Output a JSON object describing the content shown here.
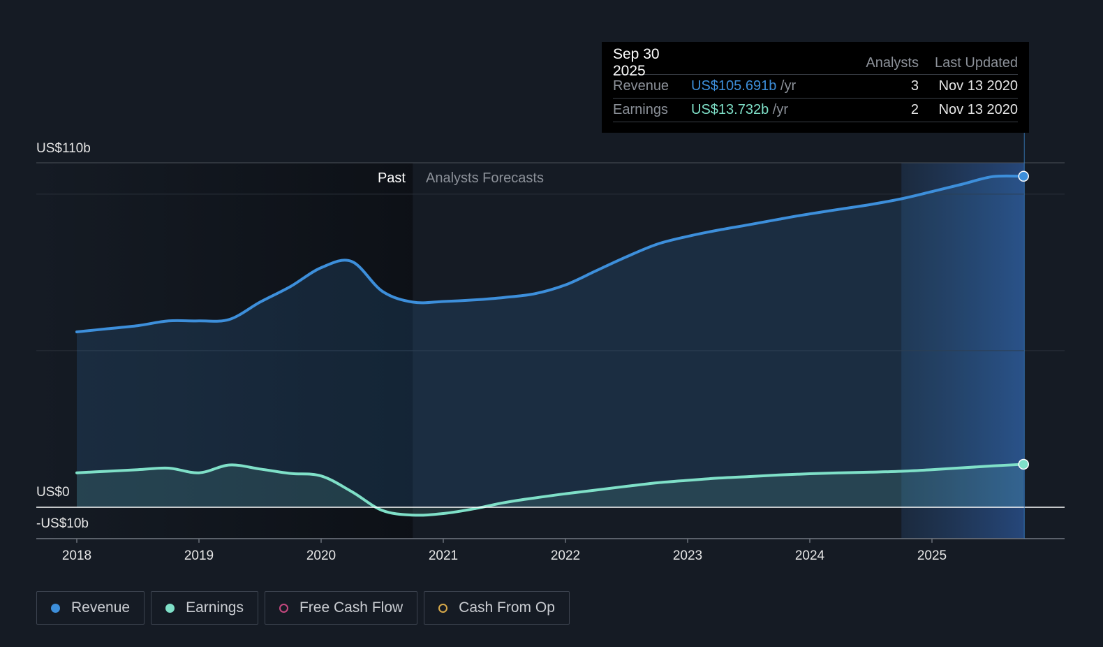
{
  "chart_data": {
    "type": "area",
    "x_ticks": [
      "2018",
      "2019",
      "2020",
      "2021",
      "2022",
      "2023",
      "2024",
      "2025"
    ],
    "y_labels": [
      "US$110b",
      "US$0",
      "-US$10b"
    ],
    "ylim": [
      -10,
      110
    ],
    "region_labels": {
      "past": "Past",
      "forecast": "Analysts Forecasts"
    },
    "past_end": 2020.75,
    "highlight_start": 2024.75,
    "series": [
      {
        "name": "Revenue",
        "color": "#3d8fdb",
        "x": [
          2018.0,
          2018.25,
          2018.5,
          2018.75,
          2019.0,
          2019.25,
          2019.5,
          2019.75,
          2020.0,
          2020.25,
          2020.5,
          2020.75,
          2021.0,
          2021.25,
          2021.5,
          2021.75,
          2022.0,
          2022.25,
          2022.5,
          2022.75,
          2023.0,
          2023.25,
          2023.5,
          2023.75,
          2024.0,
          2024.25,
          2024.5,
          2024.75,
          2025.0,
          2025.25,
          2025.5,
          2025.75
        ],
        "values": [
          56.0,
          57.0,
          58.0,
          59.5,
          59.5,
          60.0,
          65.5,
          70.5,
          76.5,
          78.5,
          69.0,
          65.5,
          65.7,
          66.2,
          67.0,
          68.2,
          71.0,
          75.5,
          80.0,
          84.0,
          86.5,
          88.5,
          90.2,
          92.0,
          93.7,
          95.2,
          96.7,
          98.5,
          100.8,
          103.2,
          105.6,
          105.691
        ]
      },
      {
        "name": "Earnings",
        "color": "#7fe0c8",
        "x": [
          2018.0,
          2018.25,
          2018.5,
          2018.75,
          2019.0,
          2019.25,
          2019.5,
          2019.75,
          2020.0,
          2020.25,
          2020.5,
          2020.75,
          2021.0,
          2021.25,
          2021.5,
          2021.75,
          2022.0,
          2022.25,
          2022.5,
          2022.75,
          2023.0,
          2023.25,
          2023.5,
          2023.75,
          2024.0,
          2024.25,
          2024.5,
          2024.75,
          2025.0,
          2025.25,
          2025.5,
          2025.75
        ],
        "values": [
          11.0,
          11.5,
          12.0,
          12.5,
          11.0,
          13.5,
          12.2,
          10.8,
          10.0,
          5.0,
          -1.0,
          -2.5,
          -2.0,
          -0.5,
          1.5,
          3.0,
          4.3,
          5.5,
          6.7,
          7.8,
          8.6,
          9.3,
          9.8,
          10.3,
          10.7,
          11.0,
          11.2,
          11.5,
          12.0,
          12.6,
          13.2,
          13.732
        ]
      }
    ]
  },
  "tooltip": {
    "date": "Sep 30 2025",
    "col_analysts": "Analysts",
    "col_updated": "Last Updated",
    "rows": [
      {
        "label": "Revenue",
        "value": "US$105.691b",
        "unit": "/yr",
        "color": "#3d8fdb",
        "analysts": "3",
        "updated": "Nov 13 2020"
      },
      {
        "label": "Earnings",
        "value": "US$13.732b",
        "unit": "/yr",
        "color": "#7fe0c8",
        "analysts": "2",
        "updated": "Nov 13 2020"
      }
    ]
  },
  "legend": [
    {
      "label": "Revenue",
      "color": "#3d8fdb",
      "filled": true
    },
    {
      "label": "Earnings",
      "color": "#7fe0c8",
      "filled": true
    },
    {
      "label": "Free Cash Flow",
      "color": "#c5487f",
      "filled": false
    },
    {
      "label": "Cash From Op",
      "color": "#d7a94a",
      "filled": false
    }
  ]
}
